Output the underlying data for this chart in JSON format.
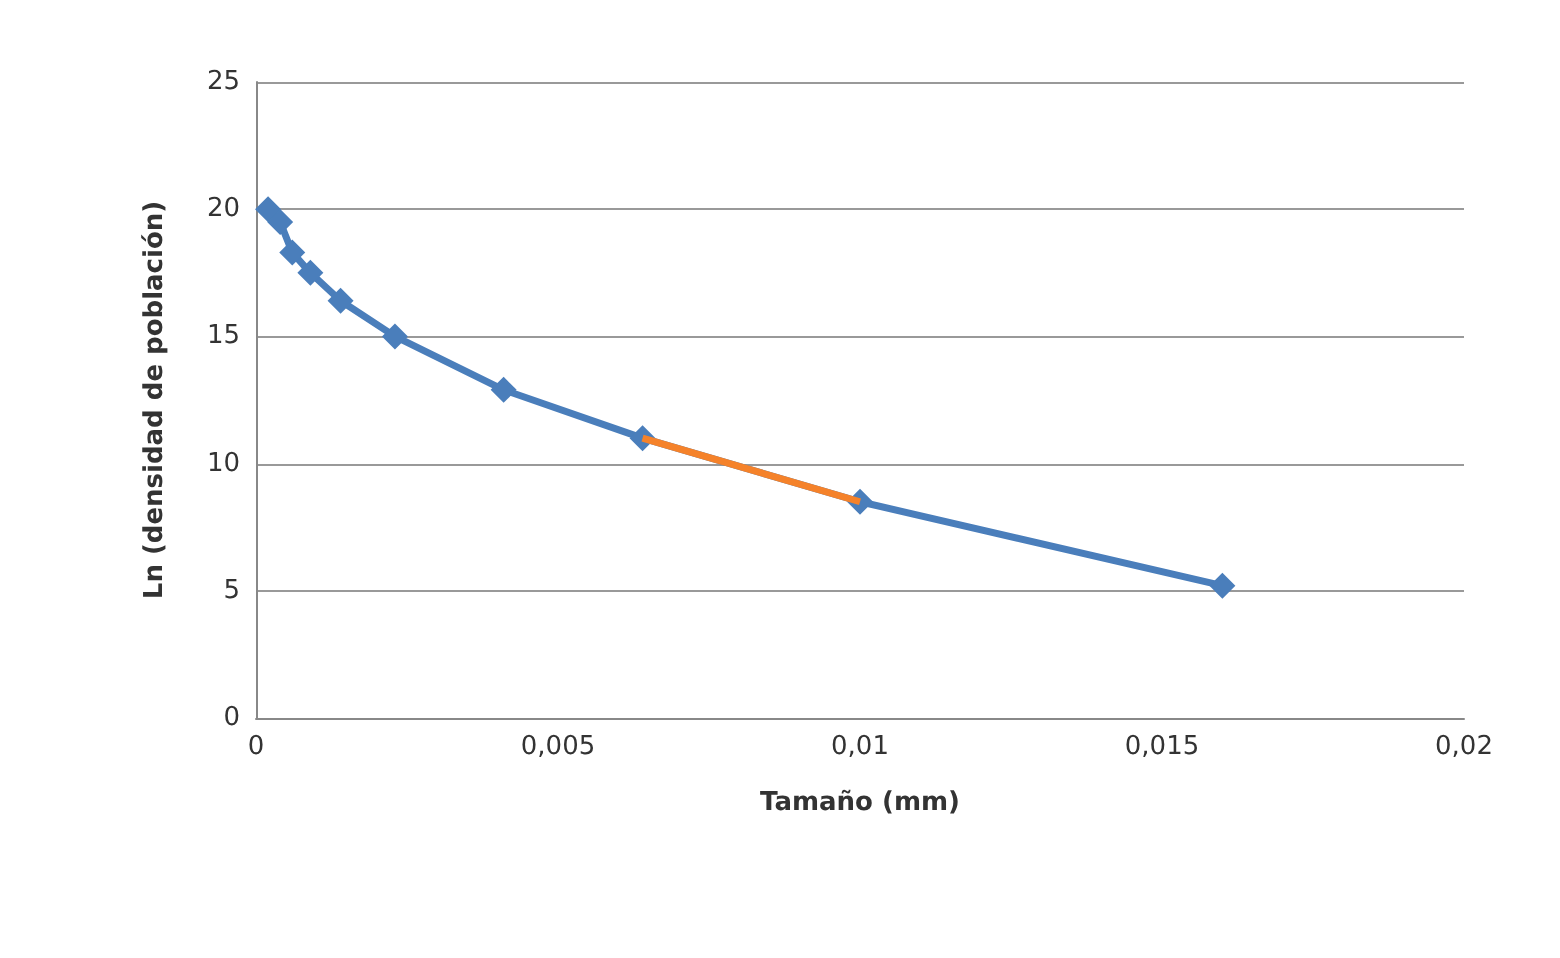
{
  "chart_data": {
    "type": "line",
    "xlabel": "Tamaño (mm)",
    "ylabel": "Ln (densidad de población)",
    "xlim": [
      0,
      0.02
    ],
    "xticks": [
      {
        "value": 0,
        "label": "0"
      },
      {
        "value": 0.005,
        "label": "0,005"
      },
      {
        "value": 0.01,
        "label": "0,01"
      },
      {
        "value": 0.015,
        "label": "0,015"
      },
      {
        "value": 0.02,
        "label": "0,02"
      }
    ],
    "ylim": [
      0,
      25
    ],
    "yticks": [
      0,
      5,
      10,
      15,
      20,
      25
    ],
    "grid": "y",
    "series": [
      {
        "color": "#4a7ebb",
        "marker": "diamond",
        "x": [
          0.0002,
          0.0004,
          0.0006,
          0.0009,
          0.0014,
          0.0023,
          0.0041,
          0.0064,
          0.01,
          0.016
        ],
        "values": [
          20.0,
          19.5,
          18.3,
          17.5,
          16.4,
          15.0,
          12.9,
          11.0,
          8.5,
          5.2
        ]
      },
      {
        "color": "#f5822a",
        "marker": "none",
        "x": [
          0.0064,
          0.01
        ],
        "values": [
          11.0,
          8.5
        ]
      }
    ]
  }
}
